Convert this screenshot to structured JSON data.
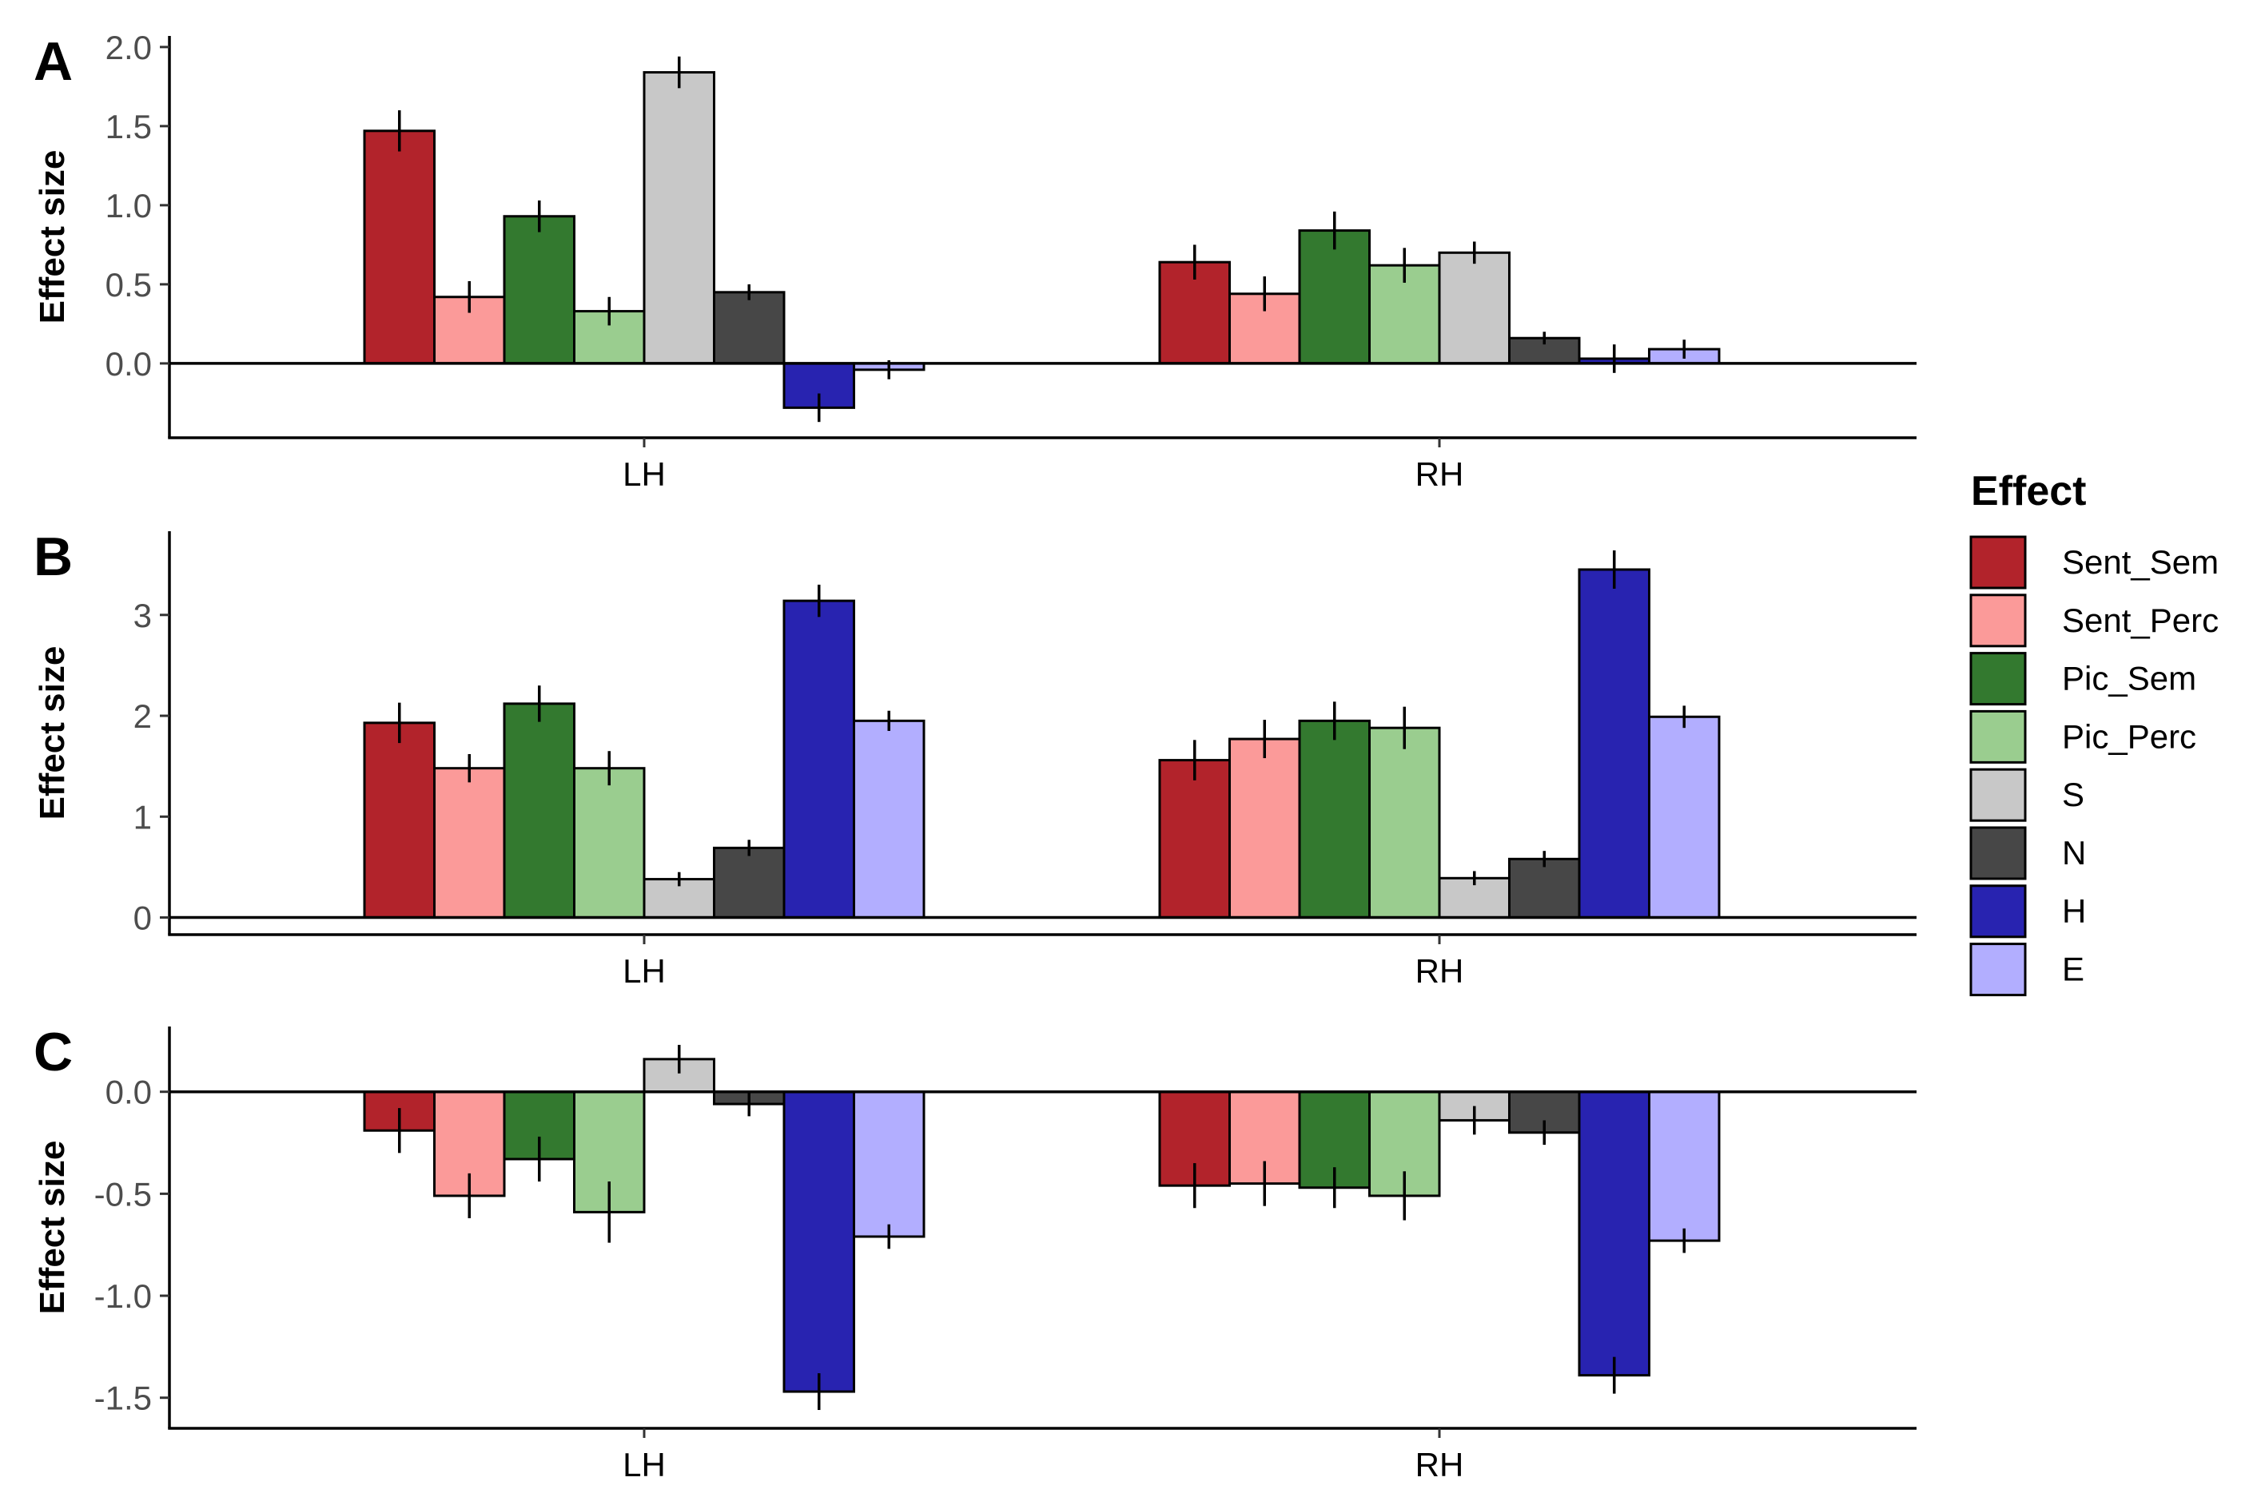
{
  "legend": {
    "title": "Effect",
    "items": [
      {
        "label": "Sent_Sem",
        "color": "#B2232B"
      },
      {
        "label": "Sent_Perc",
        "color": "#FB9A99"
      },
      {
        "label": "Pic_Sem",
        "color": "#33792F"
      },
      {
        "label": "Pic_Perc",
        "color": "#9ACD8F"
      },
      {
        "label": "S",
        "color": "#C8C8C8"
      },
      {
        "label": "N",
        "color": "#474747"
      },
      {
        "label": "H",
        "color": "#2823B0"
      },
      {
        "label": "E",
        "color": "#B2AEFF"
      }
    ]
  },
  "chart_data": [
    {
      "panel_label": "A",
      "type": "bar",
      "ylabel": "Effect size",
      "categories": [
        "LH",
        "RH"
      ],
      "yticks": [
        0.0,
        0.5,
        1.0,
        1.5,
        2.0
      ],
      "ytick_labels": [
        "0.0",
        "0.5",
        "1.0",
        "1.5",
        "2.0"
      ],
      "ylim": [
        -0.47,
        2.07
      ],
      "series": [
        {
          "name": "Sent_Sem",
          "values": [
            1.47,
            0.64
          ],
          "errors": [
            0.13,
            0.11
          ]
        },
        {
          "name": "Sent_Perc",
          "values": [
            0.42,
            0.44
          ],
          "errors": [
            0.1,
            0.11
          ]
        },
        {
          "name": "Pic_Sem",
          "values": [
            0.93,
            0.84
          ],
          "errors": [
            0.1,
            0.12
          ]
        },
        {
          "name": "Pic_Perc",
          "values": [
            0.33,
            0.62
          ],
          "errors": [
            0.09,
            0.11
          ]
        },
        {
          "name": "S",
          "values": [
            1.84,
            0.7
          ],
          "errors": [
            0.1,
            0.07
          ]
        },
        {
          "name": "N",
          "values": [
            0.45,
            0.16
          ],
          "errors": [
            0.05,
            0.04
          ]
        },
        {
          "name": "H",
          "values": [
            -0.28,
            0.03
          ],
          "errors": [
            0.09,
            0.09
          ]
        },
        {
          "name": "E",
          "values": [
            -0.04,
            0.09
          ],
          "errors": [
            0.06,
            0.06
          ]
        }
      ]
    },
    {
      "panel_label": "B",
      "type": "bar",
      "ylabel": "Effect size",
      "categories": [
        "LH",
        "RH"
      ],
      "yticks": [
        0,
        1,
        2,
        3
      ],
      "ytick_labels": [
        "0",
        "1",
        "2",
        "3"
      ],
      "ylim": [
        -0.17,
        3.83
      ],
      "series": [
        {
          "name": "Sent_Sem",
          "values": [
            1.93,
            1.56
          ],
          "errors": [
            0.2,
            0.2
          ]
        },
        {
          "name": "Sent_Perc",
          "values": [
            1.48,
            1.77
          ],
          "errors": [
            0.14,
            0.19
          ]
        },
        {
          "name": "Pic_Sem",
          "values": [
            2.12,
            1.95
          ],
          "errors": [
            0.18,
            0.19
          ]
        },
        {
          "name": "Pic_Perc",
          "values": [
            1.48,
            1.88
          ],
          "errors": [
            0.17,
            0.21
          ]
        },
        {
          "name": "S",
          "values": [
            0.38,
            0.39
          ],
          "errors": [
            0.07,
            0.07
          ]
        },
        {
          "name": "N",
          "values": [
            0.69,
            0.58
          ],
          "errors": [
            0.08,
            0.08
          ]
        },
        {
          "name": "H",
          "values": [
            3.14,
            3.45
          ],
          "errors": [
            0.16,
            0.19
          ]
        },
        {
          "name": "E",
          "values": [
            1.95,
            1.99
          ],
          "errors": [
            0.1,
            0.11
          ]
        }
      ]
    },
    {
      "panel_label": "C",
      "type": "bar",
      "ylabel": "Effect size",
      "categories": [
        "LH",
        "RH"
      ],
      "yticks": [
        0.0,
        -0.5,
        -1.0,
        -1.5
      ],
      "ytick_labels": [
        "0.0",
        "-0.5",
        "-1.0",
        "-1.5"
      ],
      "ylim": [
        -1.65,
        0.32
      ],
      "series": [
        {
          "name": "Sent_Sem",
          "values": [
            -0.19,
            -0.46
          ],
          "errors": [
            0.11,
            0.11
          ]
        },
        {
          "name": "Sent_Perc",
          "values": [
            -0.51,
            -0.45
          ],
          "errors": [
            0.11,
            0.11
          ]
        },
        {
          "name": "Pic_Sem",
          "values": [
            -0.33,
            -0.47
          ],
          "errors": [
            0.11,
            0.1
          ]
        },
        {
          "name": "Pic_Perc",
          "values": [
            -0.59,
            -0.51
          ],
          "errors": [
            0.15,
            0.12
          ]
        },
        {
          "name": "S",
          "values": [
            0.16,
            -0.14
          ],
          "errors": [
            0.07,
            0.07
          ]
        },
        {
          "name": "N",
          "values": [
            -0.06,
            -0.2
          ],
          "errors": [
            0.06,
            0.06
          ]
        },
        {
          "name": "H",
          "values": [
            -1.47,
            -1.39
          ],
          "errors": [
            0.09,
            0.09
          ]
        },
        {
          "name": "E",
          "values": [
            -0.71,
            -0.73
          ],
          "errors": [
            0.06,
            0.06
          ]
        }
      ]
    }
  ]
}
